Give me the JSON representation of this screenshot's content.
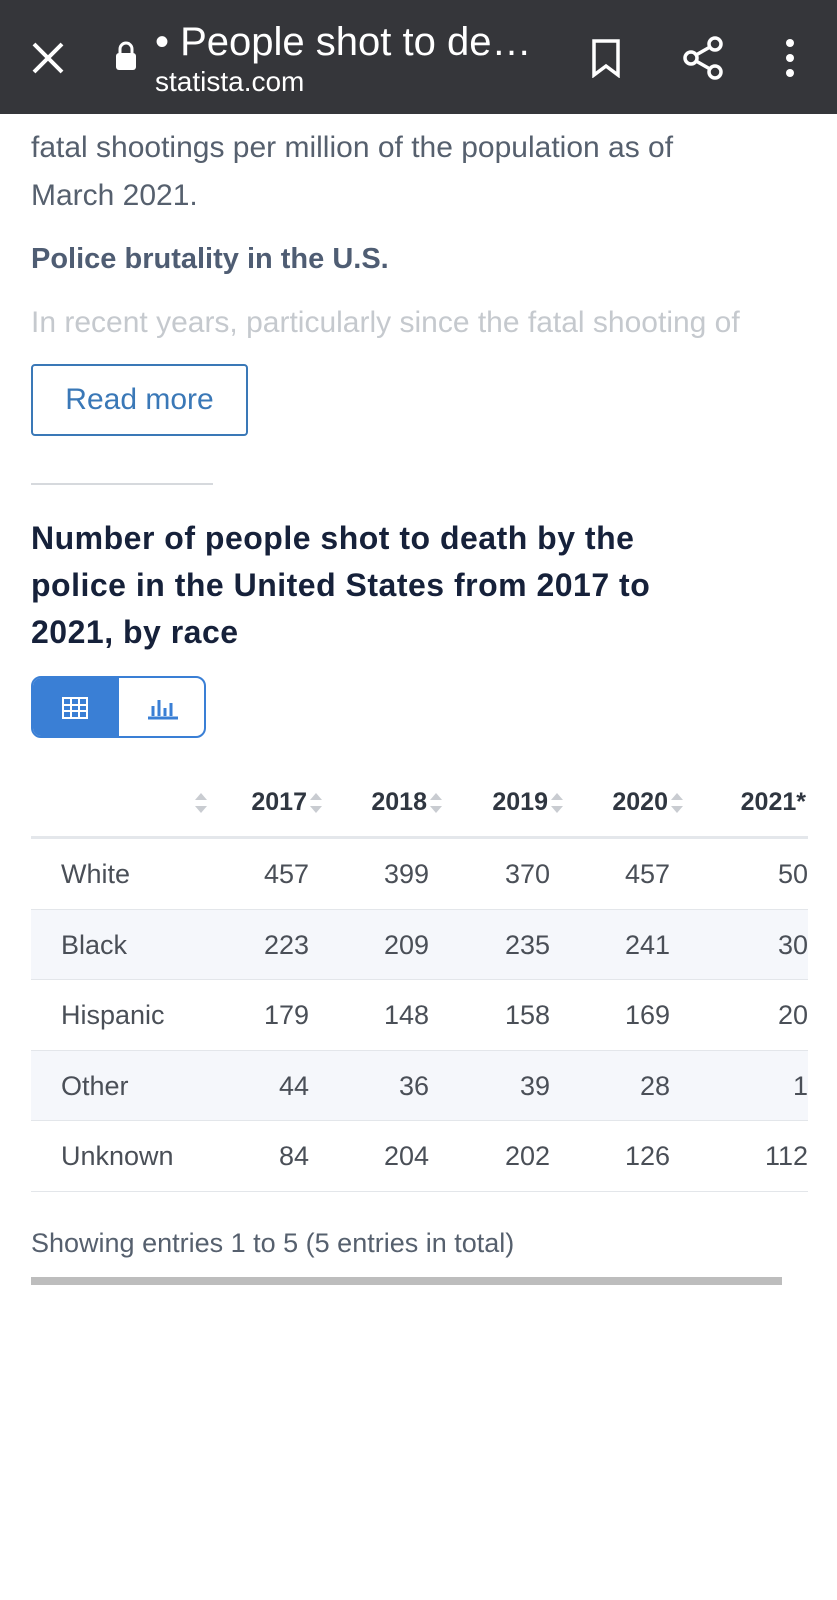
{
  "toolbar": {
    "title": "• People shot to de…",
    "url": "statista.com"
  },
  "article": {
    "paragraph_line1": "fatal shootings per million of the population as of",
    "paragraph_line2": "March 2021.",
    "subheading": "Police brutality in the U.S.",
    "faded_text": "In recent years, particularly since the fatal shooting of",
    "read_more": "Read more"
  },
  "table_title": [
    "Number of people shot to death by the",
    "police in the United States from 2017 to",
    "2021, by race"
  ],
  "table": {
    "headers": [
      "2017",
      "2018",
      "2019",
      "2020",
      "2021*"
    ],
    "rows": [
      [
        "White",
        "457",
        "399",
        "370",
        "457",
        "50"
      ],
      [
        "Black",
        "223",
        "209",
        "235",
        "241",
        "30"
      ],
      [
        "Hispanic",
        "179",
        "148",
        "158",
        "169",
        "20"
      ],
      [
        "Other",
        "44",
        "36",
        "39",
        "28",
        "1"
      ],
      [
        "Unknown",
        "84",
        "204",
        "202",
        "126",
        "112"
      ]
    ]
  },
  "footer": "Showing entries 1 to 5 (5 entries in total)"
}
